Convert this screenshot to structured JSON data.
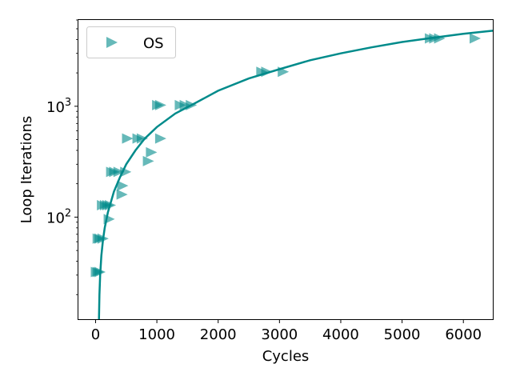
{
  "chart_data": {
    "type": "scatter",
    "xlabel": "Cycles",
    "ylabel": "Loop Iterations",
    "xlim": [
      -280,
      6480
    ],
    "ylim": [
      12,
      6000
    ],
    "yscale": "log",
    "grid": false,
    "legend_position": "top-left",
    "x_ticks": [
      0,
      1000,
      2000,
      3000,
      4000,
      5000,
      6000
    ],
    "y_ticks": [
      {
        "value": 100,
        "base": "10",
        "exp": "2"
      },
      {
        "value": 1000,
        "base": "10",
        "exp": "3"
      }
    ],
    "series": [
      {
        "name": "OS",
        "marker": "triangle-right",
        "color": "#008b8b",
        "points": [
          {
            "x": 0,
            "y": 32
          },
          {
            "x": 30,
            "y": 32
          },
          {
            "x": 60,
            "y": 32
          },
          {
            "x": 30,
            "y": 64
          },
          {
            "x": 60,
            "y": 64
          },
          {
            "x": 110,
            "y": 64
          },
          {
            "x": 100,
            "y": 128
          },
          {
            "x": 150,
            "y": 128
          },
          {
            "x": 190,
            "y": 128
          },
          {
            "x": 230,
            "y": 128
          },
          {
            "x": 210,
            "y": 96
          },
          {
            "x": 250,
            "y": 256
          },
          {
            "x": 300,
            "y": 256
          },
          {
            "x": 370,
            "y": 256
          },
          {
            "x": 480,
            "y": 256
          },
          {
            "x": 430,
            "y": 192
          },
          {
            "x": 420,
            "y": 160
          },
          {
            "x": 510,
            "y": 512
          },
          {
            "x": 680,
            "y": 512
          },
          {
            "x": 750,
            "y": 512
          },
          {
            "x": 1050,
            "y": 512
          },
          {
            "x": 850,
            "y": 320
          },
          {
            "x": 900,
            "y": 384
          },
          {
            "x": 1000,
            "y": 1024
          },
          {
            "x": 1050,
            "y": 1024
          },
          {
            "x": 1370,
            "y": 1024
          },
          {
            "x": 1450,
            "y": 1024
          },
          {
            "x": 1550,
            "y": 1024
          },
          {
            "x": 2700,
            "y": 2048
          },
          {
            "x": 2780,
            "y": 2048
          },
          {
            "x": 3050,
            "y": 2048
          },
          {
            "x": 5450,
            "y": 4096
          },
          {
            "x": 5520,
            "y": 4096
          },
          {
            "x": 5600,
            "y": 4096
          },
          {
            "x": 6180,
            "y": 4096
          }
        ]
      }
    ],
    "fit_line": {
      "color": "#008b8b",
      "points": [
        {
          "x": 55,
          "y": 12
        },
        {
          "x": 63,
          "y": 20
        },
        {
          "x": 75,
          "y": 30
        },
        {
          "x": 95,
          "y": 45
        },
        {
          "x": 120,
          "y": 62
        },
        {
          "x": 150,
          "y": 80
        },
        {
          "x": 200,
          "y": 110
        },
        {
          "x": 300,
          "y": 170
        },
        {
          "x": 400,
          "y": 230
        },
        {
          "x": 500,
          "y": 300
        },
        {
          "x": 650,
          "y": 400
        },
        {
          "x": 800,
          "y": 510
        },
        {
          "x": 1000,
          "y": 650
        },
        {
          "x": 1300,
          "y": 860
        },
        {
          "x": 1600,
          "y": 1050
        },
        {
          "x": 2000,
          "y": 1380
        },
        {
          "x": 2500,
          "y": 1780
        },
        {
          "x": 3000,
          "y": 2160
        },
        {
          "x": 3500,
          "y": 2600
        },
        {
          "x": 4000,
          "y": 3000
        },
        {
          "x": 4500,
          "y": 3400
        },
        {
          "x": 5000,
          "y": 3800
        },
        {
          "x": 5500,
          "y": 4150
        },
        {
          "x": 6000,
          "y": 4500
        },
        {
          "x": 6480,
          "y": 4800
        }
      ]
    }
  }
}
